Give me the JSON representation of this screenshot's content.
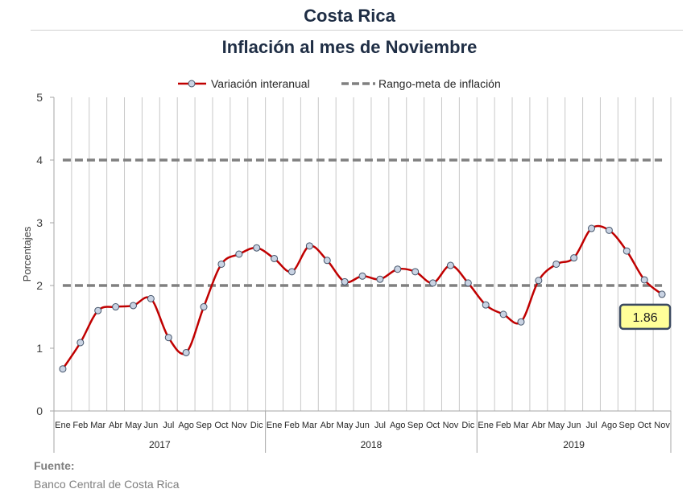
{
  "header": {
    "country": "Costa Rica",
    "subtitle": "Inflación al mes de Noviembre"
  },
  "source": {
    "label": "Fuente:",
    "text": "Banco Central de Costa Rica"
  },
  "chart_data": {
    "type": "line",
    "title": "Inflación al mes de Noviembre",
    "ylabel": "Porcentajes",
    "xlabel": "",
    "ylim": [
      0,
      5
    ],
    "yticks": [
      0,
      1,
      2,
      3,
      4,
      5
    ],
    "grid": true,
    "legend_position": "top",
    "years": [
      "2017",
      "2018",
      "2019"
    ],
    "months": [
      "Ene",
      "Feb",
      "Mar",
      "Abr",
      "May",
      "Jun",
      "Jul",
      "Ago",
      "Sep",
      "Oct",
      "Nov",
      "Dic",
      "Ene",
      "Feb",
      "Mar",
      "Abr",
      "May",
      "Jun",
      "Jul",
      "Ago",
      "Sep",
      "Oct",
      "Nov",
      "Dic",
      "Ene",
      "Feb",
      "Mar",
      "Abr",
      "May",
      "Jun",
      "Jul",
      "Ago",
      "Sep",
      "Oct",
      "Nov"
    ],
    "series": [
      {
        "name": "Variación interanual",
        "color": "#c00000",
        "values": [
          0.67,
          1.09,
          1.6,
          1.66,
          1.68,
          1.79,
          1.17,
          0.93,
          1.66,
          2.34,
          2.5,
          2.6,
          2.43,
          2.22,
          2.63,
          2.4,
          2.06,
          2.15,
          2.1,
          2.26,
          2.22,
          2.04,
          2.32,
          2.04,
          1.69,
          1.54,
          1.42,
          2.08,
          2.34,
          2.44,
          2.91,
          2.88,
          2.55,
          2.09,
          1.86
        ]
      }
    ],
    "reference_lines": [
      {
        "name": "Rango-meta de inflación",
        "values": [
          2,
          4
        ],
        "color": "#808080",
        "style": "dashed"
      }
    ],
    "annotation": {
      "label": "1.86"
    }
  }
}
